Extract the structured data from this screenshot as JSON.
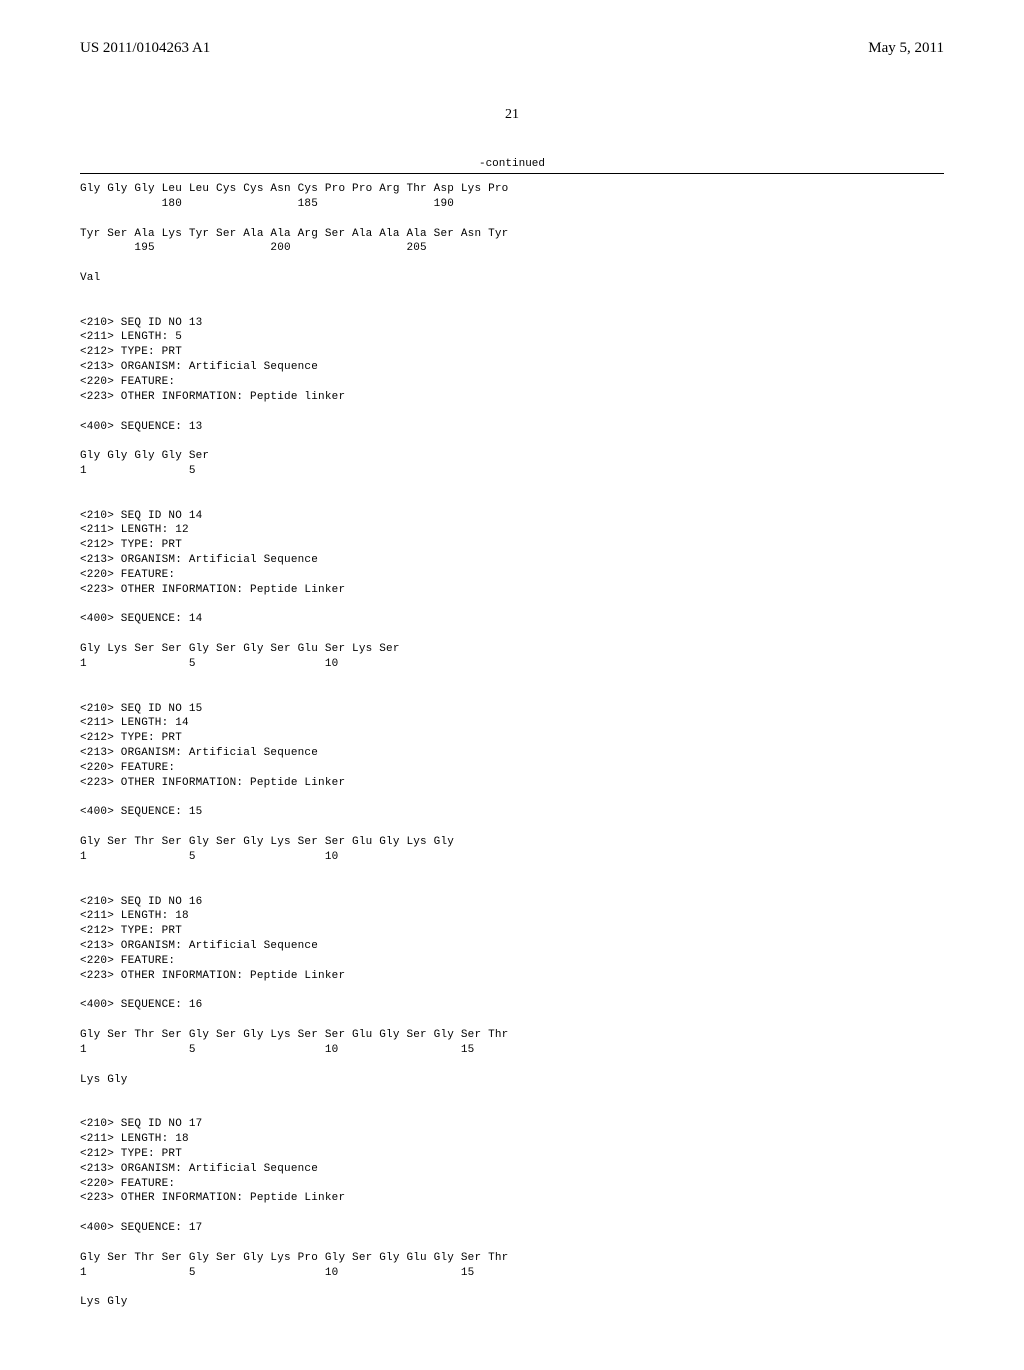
{
  "header": {
    "publication_number": "US 2011/0104263 A1",
    "publication_date": "May 5, 2011"
  },
  "page_number": "21",
  "continued_label": "-continued",
  "seq12_tail": {
    "line1": "Gly Gly Gly Leu Leu Cys Cys Asn Cys Pro Pro Arg Thr Asp Lys Pro",
    "nums1": "            180                 185                 190",
    "line2": "Tyr Ser Ala Lys Tyr Ser Ala Ala Arg Ser Ala Ala Ala Ser Asn Tyr",
    "nums2": "        195                 200                 205",
    "line3": "Val"
  },
  "seq13": {
    "header": [
      "<210> SEQ ID NO 13",
      "<211> LENGTH: 5",
      "<212> TYPE: PRT",
      "<213> ORGANISM: Artificial Sequence",
      "<220> FEATURE:",
      "<223> OTHER INFORMATION: Peptide linker"
    ],
    "seq_label": "<400> SEQUENCE: 13",
    "line1": "Gly Gly Gly Gly Ser",
    "nums1": "1               5"
  },
  "seq14": {
    "header": [
      "<210> SEQ ID NO 14",
      "<211> LENGTH: 12",
      "<212> TYPE: PRT",
      "<213> ORGANISM: Artificial Sequence",
      "<220> FEATURE:",
      "<223> OTHER INFORMATION: Peptide Linker"
    ],
    "seq_label": "<400> SEQUENCE: 14",
    "line1": "Gly Lys Ser Ser Gly Ser Gly Ser Glu Ser Lys Ser",
    "nums1": "1               5                   10"
  },
  "seq15": {
    "header": [
      "<210> SEQ ID NO 15",
      "<211> LENGTH: 14",
      "<212> TYPE: PRT",
      "<213> ORGANISM: Artificial Sequence",
      "<220> FEATURE:",
      "<223> OTHER INFORMATION: Peptide Linker"
    ],
    "seq_label": "<400> SEQUENCE: 15",
    "line1": "Gly Ser Thr Ser Gly Ser Gly Lys Ser Ser Glu Gly Lys Gly",
    "nums1": "1               5                   10"
  },
  "seq16": {
    "header": [
      "<210> SEQ ID NO 16",
      "<211> LENGTH: 18",
      "<212> TYPE: PRT",
      "<213> ORGANISM: Artificial Sequence",
      "<220> FEATURE:",
      "<223> OTHER INFORMATION: Peptide Linker"
    ],
    "seq_label": "<400> SEQUENCE: 16",
    "line1": "Gly Ser Thr Ser Gly Ser Gly Lys Ser Ser Glu Gly Ser Gly Ser Thr",
    "nums1": "1               5                   10                  15",
    "line2": "Lys Gly"
  },
  "seq17": {
    "header": [
      "<210> SEQ ID NO 17",
      "<211> LENGTH: 18",
      "<212> TYPE: PRT",
      "<213> ORGANISM: Artificial Sequence",
      "<220> FEATURE:",
      "<223> OTHER INFORMATION: Peptide Linker"
    ],
    "seq_label": "<400> SEQUENCE: 17",
    "line1": "Gly Ser Thr Ser Gly Ser Gly Lys Pro Gly Ser Gly Glu Gly Ser Thr",
    "nums1": "1               5                   10                  15",
    "line2": "Lys Gly"
  }
}
